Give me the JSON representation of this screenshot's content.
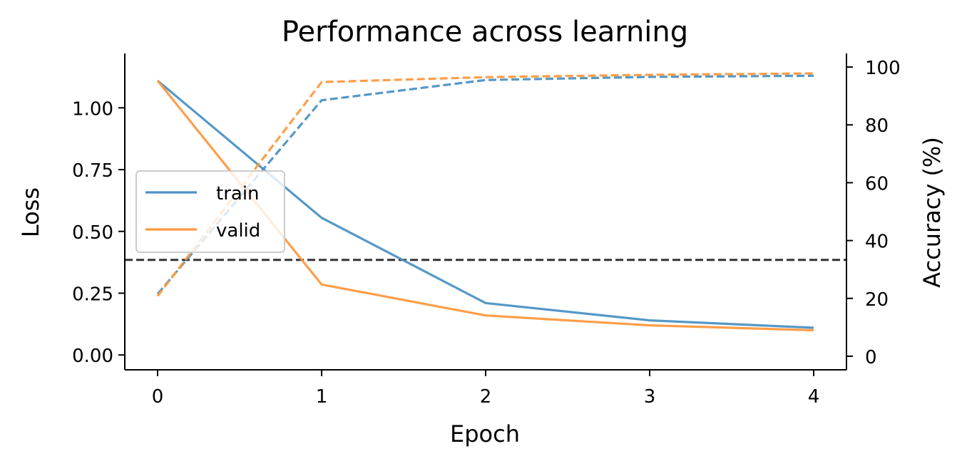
{
  "chart_data": {
    "type": "line",
    "title": "Performance across learning",
    "xlabel": "Epoch",
    "ylabel": "Loss",
    "ylabel_right": "Accuracy (%)",
    "x": [
      0,
      1,
      2,
      3,
      4
    ],
    "xticks": [
      "0",
      "1",
      "2",
      "3",
      "4"
    ],
    "xlim": [
      -0.2,
      4.2
    ],
    "ylim": [
      -0.06,
      1.22
    ],
    "ylim_right": [
      -4.7,
      104.7
    ],
    "yticks": [
      "0.00",
      "0.25",
      "0.50",
      "0.75",
      "1.00"
    ],
    "yticks_right": [
      "0",
      "20",
      "40",
      "60",
      "80",
      "100"
    ],
    "series": [
      {
        "name": "train",
        "axis": "left",
        "style": "solid",
        "color": "#4c92c3",
        "values": [
          1.11,
          0.555,
          0.21,
          0.14,
          0.11
        ]
      },
      {
        "name": "valid",
        "axis": "left",
        "style": "solid",
        "color": "#ff993e",
        "values": [
          1.11,
          0.285,
          0.16,
          0.12,
          0.1
        ]
      },
      {
        "axis": "right",
        "style": "dashed",
        "color": "#4c92c3",
        "values": [
          21.5,
          88.5,
          95.5,
          96.6,
          97.0
        ]
      },
      {
        "axis": "right",
        "style": "dashed",
        "color": "#ff993e",
        "values": [
          20.8,
          94.8,
          96.5,
          97.3,
          97.8
        ]
      }
    ],
    "reference_line": {
      "axis": "right",
      "value": 33.3,
      "color": "#333333",
      "style": "dashed"
    },
    "legend": {
      "position": "center-left",
      "entries": [
        "train",
        "valid"
      ]
    },
    "grid": false
  }
}
